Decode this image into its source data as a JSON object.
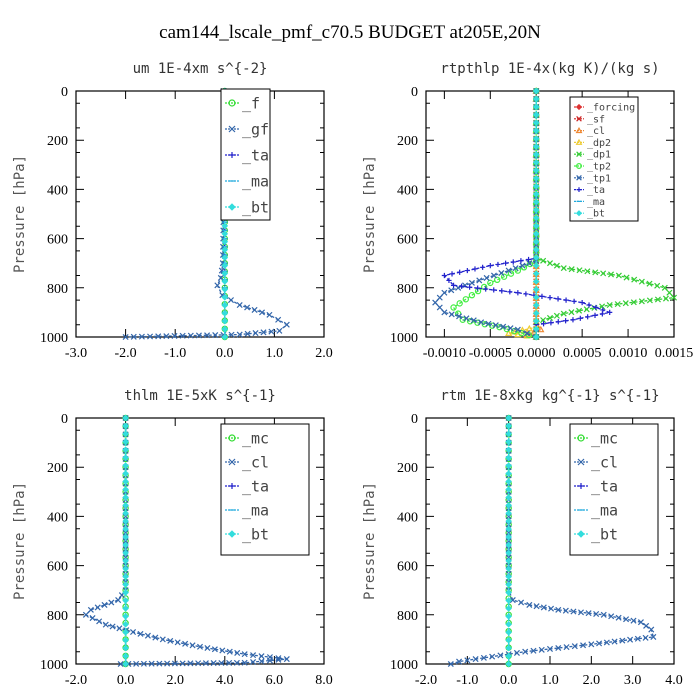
{
  "suptitle": "cam144_lscale_pmf_c70.5  BUDGET at205E,20N",
  "chart_data": [
    {
      "type": "line",
      "title": "um  1E-4xm s^{-2}",
      "ylabel": "Pressure [hPa]",
      "xlim": [
        -3.0,
        2.0
      ],
      "ylim": [
        1000,
        0
      ],
      "xticks": [
        "-3.0",
        "-2.0",
        "-1.0",
        "0.0",
        "1.0",
        "2.0"
      ],
      "xtick_values": [
        -3.0,
        -2.0,
        -1.0,
        0.0,
        1.0,
        2.0
      ],
      "yticks": [
        "0",
        "200",
        "400",
        "600",
        "800",
        "1000"
      ],
      "ytick_values": [
        0,
        200,
        400,
        600,
        800,
        1000
      ],
      "series": [
        {
          "name": "_f",
          "color": "#33dd33",
          "marker": "circle",
          "points": [
            [
              0.0,
              0
            ],
            [
              0.0,
              200
            ],
            [
              0.0,
              400
            ],
            [
              0.0,
              600
            ],
            [
              0.0,
              800
            ],
            [
              0.0,
              1000
            ]
          ]
        },
        {
          "name": "_gf",
          "color": "#3366aa",
          "marker": "x",
          "points": [
            [
              -0.02,
              0
            ],
            [
              -0.02,
              400
            ],
            [
              -0.04,
              700
            ],
            [
              -0.08,
              760
            ],
            [
              -0.15,
              790
            ],
            [
              -0.05,
              830
            ],
            [
              0.3,
              870
            ],
            [
              0.9,
              910
            ],
            [
              1.25,
              950
            ],
            [
              1.1,
              975
            ],
            [
              0.3,
              990
            ],
            [
              -2.0,
              1000
            ]
          ]
        },
        {
          "name": "_ta",
          "color": "#2222cc",
          "marker": "plus",
          "points": [
            [
              0.0,
              0
            ],
            [
              0.0,
              500
            ],
            [
              0.0,
              1000
            ]
          ]
        },
        {
          "name": "_ma",
          "color": "#22aadd",
          "marker": "dash",
          "points": [
            [
              0.0,
              0
            ],
            [
              0.0,
              500
            ],
            [
              0.0,
              1000
            ]
          ]
        },
        {
          "name": "_bt",
          "color": "#33dddd",
          "marker": "diamond",
          "points": [
            [
              0.0,
              0
            ],
            [
              0.0,
              1000
            ]
          ]
        }
      ]
    },
    {
      "type": "line",
      "title": "rtpthlp  1E-4x(kg K)/(kg s)",
      "ylabel": "Pressure [hPa]",
      "xlim": [
        -0.0012,
        0.0015
      ],
      "ylim": [
        1000,
        0
      ],
      "xticks": [
        "-0.0010",
        "-0.0005",
        "0.0000",
        "0.0005",
        "0.0010",
        "0.0015"
      ],
      "xtick_values": [
        -0.001,
        -0.0005,
        0.0,
        0.0005,
        0.001,
        0.0015
      ],
      "yticks": [
        "0",
        "200",
        "400",
        "600",
        "800",
        "1000"
      ],
      "ytick_values": [
        0,
        200,
        400,
        600,
        800,
        1000
      ],
      "series": [
        {
          "name": "_forcing",
          "color": "#dd3333",
          "marker": "diamond",
          "points": [
            [
              0.0,
              0
            ],
            [
              0.0,
              1000
            ]
          ]
        },
        {
          "name": "_sf",
          "color": "#cc2222",
          "marker": "x",
          "points": [
            [
              0.0,
              0
            ],
            [
              0.0,
              1000
            ]
          ]
        },
        {
          "name": "_cl",
          "color": "#ee8833",
          "marker": "tri",
          "points": [
            [
              0.0,
              0
            ],
            [
              0.0,
              940
            ],
            [
              5e-05,
              970
            ],
            [
              -0.0001,
              990
            ],
            [
              0.0,
              1000
            ]
          ]
        },
        {
          "name": "_dp2",
          "color": "#eecc33",
          "marker": "tri",
          "points": [
            [
              0.0,
              0
            ],
            [
              0.0,
              960
            ],
            [
              -0.0003,
              985
            ],
            [
              0.0,
              1000
            ]
          ]
        },
        {
          "name": "_dp1",
          "color": "#33cc33",
          "marker": "x",
          "points": [
            [
              0.0,
              0
            ],
            [
              0.0,
              680
            ],
            [
              0.0003,
              720
            ],
            [
              0.0009,
              750
            ],
            [
              0.0014,
              800
            ],
            [
              0.0015,
              840
            ],
            [
              0.0008,
              870
            ],
            [
              0.0003,
              905
            ],
            [
              0.0,
              940
            ],
            [
              0.0,
              1000
            ]
          ]
        },
        {
          "name": "_tp2",
          "color": "#44ee44",
          "marker": "circle",
          "points": [
            [
              0.0,
              0
            ],
            [
              0.0,
              690
            ],
            [
              -0.0002,
              730
            ],
            [
              -0.0005,
              780
            ],
            [
              -0.0007,
              830
            ],
            [
              -0.0009,
              880
            ],
            [
              -0.0008,
              930
            ],
            [
              -0.0004,
              960
            ],
            [
              0.0,
              1000
            ]
          ]
        },
        {
          "name": "_tp1",
          "color": "#3366aa",
          "marker": "x",
          "points": [
            [
              0.0,
              0
            ],
            [
              0.0,
              690
            ],
            [
              -0.0003,
              730
            ],
            [
              -0.0007,
              780
            ],
            [
              -0.001,
              820
            ],
            [
              -0.0011,
              860
            ],
            [
              -0.001,
              900
            ],
            [
              -0.0006,
              940
            ],
            [
              -0.0002,
              970
            ],
            [
              0.0,
              1000
            ]
          ]
        },
        {
          "name": "_ta",
          "color": "#2222cc",
          "marker": "plus",
          "points": [
            [
              0.0,
              0
            ],
            [
              0.0,
              680
            ],
            [
              -0.0005,
              710
            ],
            [
              -0.001,
              750
            ],
            [
              -0.0009,
              790
            ],
            [
              -0.0002,
              820
            ],
            [
              0.0005,
              860
            ],
            [
              0.0008,
              900
            ],
            [
              0.0004,
              930
            ],
            [
              0.0,
              950
            ],
            [
              0.0,
              1000
            ]
          ]
        },
        {
          "name": "_ma",
          "color": "#22aadd",
          "marker": "dash",
          "points": [
            [
              0.0,
              0
            ],
            [
              0.0,
              1000
            ]
          ]
        },
        {
          "name": "_bt",
          "color": "#33dddd",
          "marker": "diamond",
          "points": [
            [
              0.0,
              0
            ],
            [
              0.0,
              1000
            ]
          ]
        }
      ]
    },
    {
      "type": "line",
      "title": "thlm  1E-5xK s^{-1}",
      "ylabel": "Pressure [hPa]",
      "xlim": [
        -2.0,
        8.0
      ],
      "ylim": [
        1000,
        0
      ],
      "xticks": [
        "-2.0",
        "0.0",
        "2.0",
        "4.0",
        "6.0",
        "8.0"
      ],
      "xtick_values": [
        -2.0,
        0.0,
        2.0,
        4.0,
        6.0,
        8.0
      ],
      "yticks": [
        "0",
        "200",
        "400",
        "600",
        "800",
        "1000"
      ],
      "ytick_values": [
        0,
        200,
        400,
        600,
        800,
        1000
      ],
      "series": [
        {
          "name": "_mc",
          "color": "#33dd33",
          "marker": "circle",
          "points": [
            [
              0.0,
              0
            ],
            [
              0.0,
              200
            ],
            [
              0.0,
              400
            ],
            [
              0.0,
              600
            ],
            [
              0.0,
              800
            ],
            [
              0.0,
              1000
            ]
          ]
        },
        {
          "name": "_cl",
          "color": "#3366aa",
          "marker": "x",
          "points": [
            [
              0.0,
              0
            ],
            [
              0.0,
              400
            ],
            [
              0.0,
              700
            ],
            [
              -0.3,
              740
            ],
            [
              -1.4,
              780
            ],
            [
              -1.6,
              800
            ],
            [
              -0.8,
              840
            ],
            [
              0.3,
              870
            ],
            [
              1.5,
              900
            ],
            [
              3.0,
              930
            ],
            [
              4.8,
              960
            ],
            [
              6.5,
              980
            ],
            [
              4.8,
              995
            ],
            [
              -0.2,
              1000
            ]
          ]
        },
        {
          "name": "_ta",
          "color": "#2222cc",
          "marker": "plus",
          "points": [
            [
              0.0,
              0
            ],
            [
              0.0,
              1000
            ]
          ]
        },
        {
          "name": "_ma",
          "color": "#22aadd",
          "marker": "dash",
          "points": [
            [
              0.0,
              0
            ],
            [
              0.0,
              1000
            ]
          ]
        },
        {
          "name": "_bt",
          "color": "#33dddd",
          "marker": "diamond",
          "points": [
            [
              0.0,
              0
            ],
            [
              0.0,
              1000
            ]
          ]
        }
      ]
    },
    {
      "type": "line",
      "title": "rtm  1E-8xkg kg^{-1} s^{-1}",
      "ylabel": "Pressure [hPa]",
      "xlim": [
        -2.0,
        4.0
      ],
      "ylim": [
        1000,
        0
      ],
      "xticks": [
        "-2.0",
        "-1.0",
        "0.0",
        "1.0",
        "2.0",
        "3.0",
        "4.0"
      ],
      "xtick_values": [
        -2.0,
        -1.0,
        0.0,
        1.0,
        2.0,
        3.0,
        4.0
      ],
      "yticks": [
        "0",
        "200",
        "400",
        "600",
        "800",
        "1000"
      ],
      "ytick_values": [
        0,
        200,
        400,
        600,
        800,
        1000
      ],
      "series": [
        {
          "name": "_mc",
          "color": "#33dd33",
          "marker": "circle",
          "points": [
            [
              0.0,
              0
            ],
            [
              0.0,
              200
            ],
            [
              0.0,
              400
            ],
            [
              0.0,
              600
            ],
            [
              0.0,
              800
            ],
            [
              0.0,
              1000
            ]
          ]
        },
        {
          "name": "_cl",
          "color": "#3366aa",
          "marker": "x",
          "points": [
            [
              0.0,
              0
            ],
            [
              0.0,
              400
            ],
            [
              0.0,
              700
            ],
            [
              0.1,
              740
            ],
            [
              0.5,
              760
            ],
            [
              1.2,
              780
            ],
            [
              2.3,
              800
            ],
            [
              3.2,
              830
            ],
            [
              3.45,
              860
            ],
            [
              3.5,
              890
            ],
            [
              2.0,
              920
            ],
            [
              0.4,
              950
            ],
            [
              -0.6,
              975
            ],
            [
              -1.2,
              990
            ],
            [
              -1.4,
              1000
            ]
          ]
        },
        {
          "name": "_ta",
          "color": "#2222cc",
          "marker": "plus",
          "points": [
            [
              0.0,
              0
            ],
            [
              0.0,
              1000
            ]
          ]
        },
        {
          "name": "_ma",
          "color": "#22aadd",
          "marker": "dash",
          "points": [
            [
              0.0,
              0
            ],
            [
              0.0,
              1000
            ]
          ]
        },
        {
          "name": "_bt",
          "color": "#33dddd",
          "marker": "diamond",
          "points": [
            [
              0.0,
              0
            ],
            [
              0.0,
              1000
            ]
          ]
        }
      ]
    }
  ]
}
